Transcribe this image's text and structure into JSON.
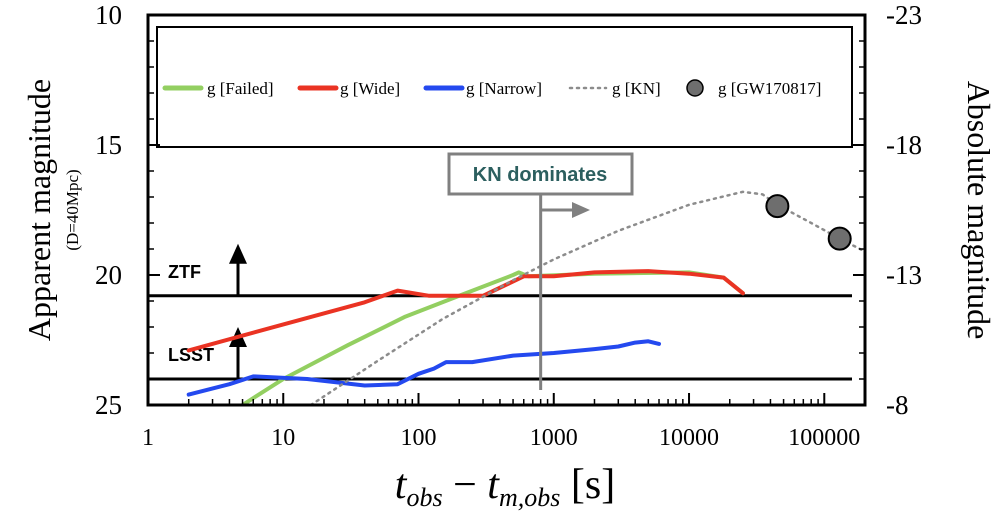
{
  "chart_data": {
    "type": "line",
    "title": "",
    "xlabel": "t_obs − t_m,obs [s]",
    "xlabel_parts": {
      "t1": "t",
      "sub1": "obs",
      "minus": " − ",
      "t2": "t",
      "sub2": "m,obs",
      "unit": " [s]"
    },
    "ylabel_left": "Apparent magnitude",
    "ylabel_left_sub": "(D=40Mpc)",
    "ylabel_right": "Absolute magnitude",
    "x_scale": "log",
    "xlim": [
      1,
      200000
    ],
    "ylim": [
      25,
      10
    ],
    "y_inverted": true,
    "x_ticks": [
      1,
      10,
      100,
      1000,
      10000,
      100000
    ],
    "x_tick_labels": [
      "1",
      "10",
      "100",
      "1000",
      "10000",
      "100000"
    ],
    "y_ticks": [
      10,
      15,
      20,
      25
    ],
    "y_tick_labels": [
      "10",
      "15",
      "20",
      "25"
    ],
    "y_right_ticks": [
      10,
      15,
      20,
      25
    ],
    "y_right_tick_labels": [
      "-23",
      "-18",
      "-13",
      "-8"
    ],
    "colors": {
      "failed": "#93cf61",
      "wide": "#ea3323",
      "narrow": "#2449ef",
      "kn": "#8c8c8c",
      "gw": "#6e6e6e",
      "axis": "#000000",
      "annotation": "#808080",
      "annotation_text": "#2c5f5f"
    },
    "legend_placement": "top",
    "series": [
      {
        "name": "g [Failed]",
        "key": "failed",
        "style": "solid",
        "points": [
          [
            5,
            25.0
          ],
          [
            10,
            24.0
          ],
          [
            30,
            22.7
          ],
          [
            80,
            21.6
          ],
          [
            200,
            20.8
          ],
          [
            500,
            20.0
          ],
          [
            550,
            19.9
          ],
          [
            650,
            20.05
          ],
          [
            2000,
            19.95
          ],
          [
            10000,
            19.9
          ],
          [
            18000,
            20.1
          ],
          [
            25000,
            20.7
          ]
        ]
      },
      {
        "name": "g [Wide]",
        "key": "wide",
        "style": "solid",
        "points": [
          [
            2,
            22.9
          ],
          [
            10,
            21.9
          ],
          [
            40,
            21.05
          ],
          [
            70,
            20.6
          ],
          [
            120,
            20.8
          ],
          [
            300,
            20.8
          ],
          [
            600,
            20.05
          ],
          [
            1000,
            20.05
          ],
          [
            2000,
            19.9
          ],
          [
            5000,
            19.85
          ],
          [
            10000,
            19.95
          ],
          [
            18000,
            20.1
          ],
          [
            25000,
            20.7
          ]
        ]
      },
      {
        "name": "g [Narrow]",
        "key": "narrow",
        "style": "solid",
        "points": [
          [
            2,
            24.6
          ],
          [
            4,
            24.2
          ],
          [
            6,
            23.9
          ],
          [
            15,
            24.0
          ],
          [
            40,
            24.25
          ],
          [
            70,
            24.2
          ],
          [
            100,
            23.8
          ],
          [
            130,
            23.6
          ],
          [
            160,
            23.35
          ],
          [
            250,
            23.35
          ],
          [
            500,
            23.1
          ],
          [
            1000,
            23.0
          ],
          [
            2000,
            22.85
          ],
          [
            3000,
            22.75
          ],
          [
            4000,
            22.6
          ],
          [
            5000,
            22.55
          ],
          [
            6000,
            22.65
          ]
        ]
      },
      {
        "name": "g [KN]",
        "key": "kn",
        "style": "dotted",
        "points": [
          [
            16,
            25.0
          ],
          [
            50,
            23.3
          ],
          [
            150,
            21.7
          ],
          [
            500,
            20.2
          ],
          [
            1000,
            19.4
          ],
          [
            3000,
            18.3
          ],
          [
            10000,
            17.3
          ],
          [
            25000,
            16.8
          ],
          [
            35000,
            16.9
          ],
          [
            45000,
            17.3
          ],
          [
            80000,
            18.0
          ],
          [
            130000,
            18.6
          ],
          [
            200000,
            19.1
          ]
        ]
      },
      {
        "name": "g [GW170817]",
        "key": "gw",
        "style": "marker",
        "points": [
          [
            45000,
            17.35
          ],
          [
            130000,
            18.6
          ]
        ]
      }
    ],
    "reference_lines": [
      {
        "label": "ZTF",
        "y": 20.8
      },
      {
        "label": "LSST",
        "y": 24.0
      }
    ],
    "annotation": {
      "text": "KN dominates",
      "x": 800
    }
  }
}
